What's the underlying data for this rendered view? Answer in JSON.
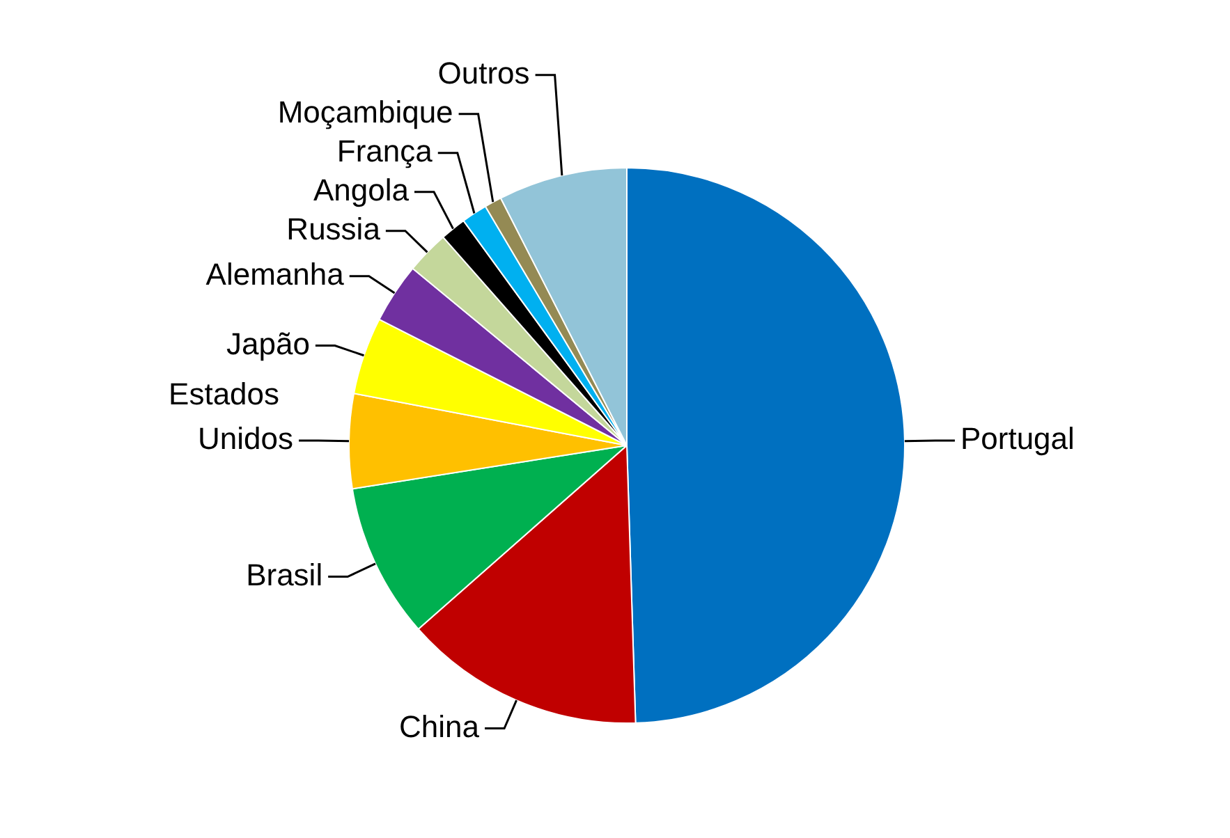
{
  "chart_data": {
    "type": "pie",
    "categories": [
      "Portugal",
      "China",
      "Brasil",
      "Estados Unidos",
      "Japão",
      "Alemanha",
      "Russia",
      "Angola",
      "França",
      "Moçambique",
      "Outros"
    ],
    "values": [
      49.5,
      14,
      9,
      5.5,
      4.5,
      3.5,
      2.5,
      1.5,
      1.5,
      1,
      7.5
    ],
    "colors": [
      "#0070c0",
      "#c00000",
      "#00b050",
      "#ffc000",
      "#ffff00",
      "#7030a0",
      "#c4d79b",
      "#000000",
      "#00b0f0",
      "#948a54",
      "#92c4d8"
    ],
    "legend": false
  }
}
